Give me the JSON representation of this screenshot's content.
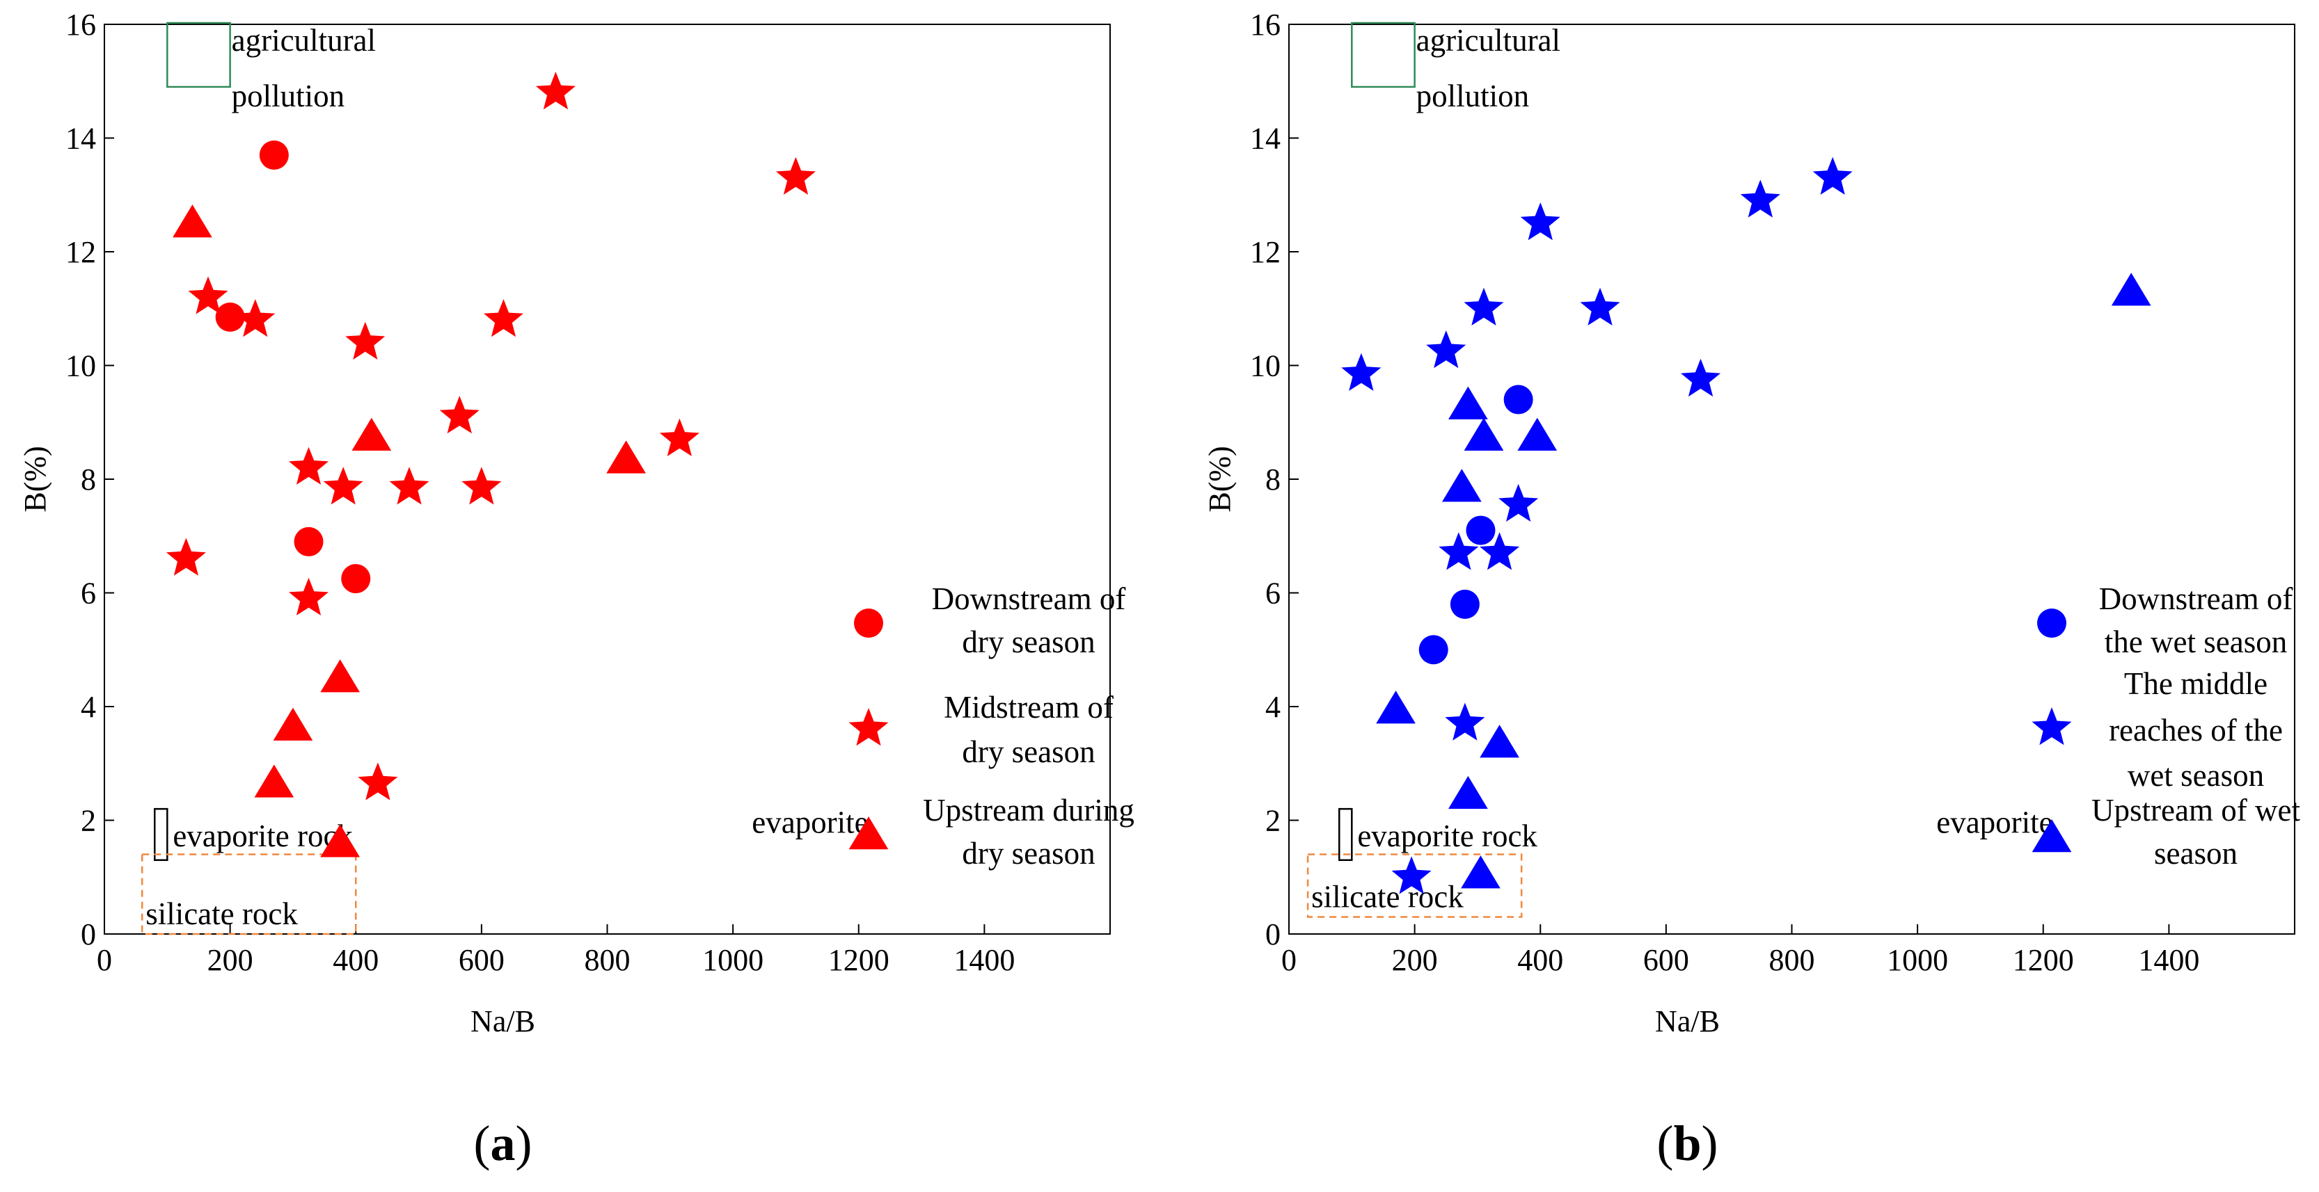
{
  "chart_data": [
    {
      "type": "scatter",
      "panel_label": "a",
      "xlabel": "Na/B",
      "ylabel": "B(%)",
      "xlim": [
        0,
        1600
      ],
      "ylim": [
        0,
        16
      ],
      "xticks": [
        "0",
        "200",
        "400",
        "600",
        "800",
        "1000",
        "1200",
        "1400"
      ],
      "yticks": [
        "0",
        "2",
        "4",
        "6",
        "8",
        "10",
        "12",
        "14",
        "16"
      ],
      "color": "#ff0000",
      "regions": [
        {
          "label": "agricultural pollution",
          "lines": [
            "agricultural",
            "pollution"
          ],
          "x": [
            100,
            200
          ],
          "y": [
            14.9,
            16.1
          ],
          "color": "#2e8b57",
          "style": "solid"
        },
        {
          "label": "evaporite rock",
          "lines": [
            "evaporite rock"
          ],
          "x": [
            80,
            100
          ],
          "y": [
            1.3,
            2.2
          ],
          "color": "#000000",
          "style": "solid"
        },
        {
          "label": "silicate rock",
          "lines": [
            "silicate rock"
          ],
          "x": [
            60,
            400
          ],
          "y": [
            0,
            1.4
          ],
          "color": "#f0883e",
          "style": "dashed"
        }
      ],
      "annotations": [
        {
          "text": "evaporite",
          "x": 1030,
          "y": 1.9
        }
      ],
      "series": [
        {
          "name": "Downstream of dry season",
          "label_lines": [
            "Downstream of",
            "dry season"
          ],
          "marker": "circle",
          "points": [
            [
              270,
              13.7
            ],
            [
              200,
              10.85
            ],
            [
              325,
              6.9
            ],
            [
              400,
              6.25
            ]
          ]
        },
        {
          "name": "Midstream of dry season",
          "label_lines": [
            "Midstream of",
            "dry season"
          ],
          "marker": "star",
          "points": [
            [
              718,
              14.8
            ],
            [
              1100,
              13.3
            ],
            [
              165,
              11.2
            ],
            [
              240,
              10.8
            ],
            [
              635,
              10.8
            ],
            [
              415,
              10.4
            ],
            [
              565,
              9.1
            ],
            [
              915,
              8.7
            ],
            [
              325,
              8.2
            ],
            [
              380,
              7.85
            ],
            [
              485,
              7.85
            ],
            [
              600,
              7.85
            ],
            [
              130,
              6.6
            ],
            [
              325,
              5.9
            ],
            [
              435,
              2.65
            ]
          ]
        },
        {
          "name": "Upstream during dry season",
          "label_lines": [
            "Upstream during",
            "dry season"
          ],
          "marker": "triangle",
          "points": [
            [
              140,
              12.5
            ],
            [
              425,
              8.75
            ],
            [
              830,
              8.35
            ],
            [
              375,
              4.5
            ],
            [
              300,
              3.65
            ],
            [
              270,
              2.65
            ],
            [
              375,
              1.6
            ]
          ]
        }
      ]
    },
    {
      "type": "scatter",
      "panel_label": "b",
      "xlabel": "Na/B",
      "ylabel": "B(%)",
      "xlim": [
        0,
        1600
      ],
      "ylim": [
        0,
        16
      ],
      "xticks": [
        "0",
        "200",
        "400",
        "600",
        "800",
        "1000",
        "1200",
        "1400"
      ],
      "yticks": [
        "0",
        "2",
        "4",
        "6",
        "8",
        "10",
        "12",
        "14",
        "16"
      ],
      "color": "#0000ff",
      "regions": [
        {
          "label": "agricultural pollution",
          "lines": [
            "agricultural",
            "pollution"
          ],
          "x": [
            100,
            200
          ],
          "y": [
            14.9,
            16.1
          ],
          "color": "#2e8b57",
          "style": "solid"
        },
        {
          "label": "evaporite rock",
          "lines": [
            "evaporite rock"
          ],
          "x": [
            80,
            100
          ],
          "y": [
            1.3,
            2.2
          ],
          "color": "#000000",
          "style": "solid"
        },
        {
          "label": "silicate rock",
          "lines": [
            "silicate rock"
          ],
          "x": [
            30,
            370
          ],
          "y": [
            0.3,
            1.4
          ],
          "color": "#f0883e",
          "style": "dashed"
        }
      ],
      "annotations": [
        {
          "text": "evaporite",
          "x": 1030,
          "y": 1.9
        }
      ],
      "series": [
        {
          "name": "Downstream of the wet season",
          "label_lines": [
            "Downstream of",
            "the wet season"
          ],
          "marker": "circle",
          "points": [
            [
              365,
              9.4
            ],
            [
              305,
              7.1
            ],
            [
              280,
              5.8
            ],
            [
              230,
              5.0
            ]
          ]
        },
        {
          "name": "The middle reaches of the wet season",
          "label_lines": [
            "The middle",
            "reaches of the",
            "wet season"
          ],
          "marker": "star",
          "points": [
            [
              865,
              13.3
            ],
            [
              750,
              12.9
            ],
            [
              400,
              12.5
            ],
            [
              310,
              11.0
            ],
            [
              495,
              11.0
            ],
            [
              250,
              10.25
            ],
            [
              115,
              9.85
            ],
            [
              655,
              9.75
            ],
            [
              365,
              7.55
            ],
            [
              270,
              6.7
            ],
            [
              335,
              6.7
            ],
            [
              280,
              3.7
            ],
            [
              195,
              1.0
            ]
          ]
        },
        {
          "name": "Upstream of wet season",
          "label_lines": [
            "Upstream of wet",
            "season"
          ],
          "marker": "triangle",
          "points": [
            [
              1340,
              11.3
            ],
            [
              285,
              9.3
            ],
            [
              310,
              8.75
            ],
            [
              395,
              8.75
            ],
            [
              275,
              7.85
            ],
            [
              170,
              3.95
            ],
            [
              335,
              3.35
            ],
            [
              285,
              2.45
            ],
            [
              305,
              1.05
            ]
          ]
        }
      ]
    }
  ]
}
